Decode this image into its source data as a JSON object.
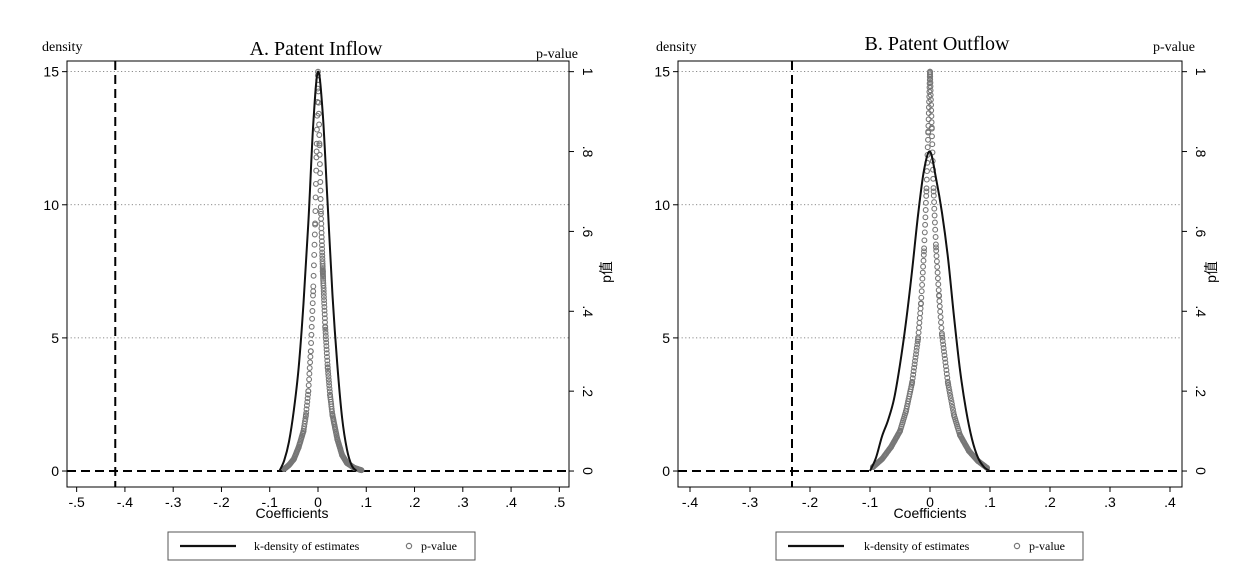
{
  "chart_data": [
    {
      "type": "line",
      "title": "A. Patent Inflow",
      "xlabel": "Coefficients",
      "ylabel_left": "density",
      "ylabel_right_top": "p-value",
      "ylabel_right_side": "p值",
      "xlim": [
        -0.52,
        0.52
      ],
      "ylim_left": [
        -0.6,
        15.4
      ],
      "ylim_right": [
        -0.04,
        1.0267
      ],
      "x_ticks": [
        "-.5",
        "-.4",
        "-.3",
        "-.2",
        "-.1",
        "0",
        ".1",
        ".2",
        ".3",
        ".4",
        ".5"
      ],
      "x_tick_values": [
        -0.5,
        -0.4,
        -0.3,
        -0.2,
        -0.1,
        0,
        0.1,
        0.2,
        0.3,
        0.4,
        0.5
      ],
      "y_ticks_left": [
        "0",
        "5",
        "10",
        "15"
      ],
      "y_tick_values_left": [
        0,
        5,
        10,
        15
      ],
      "y_ticks_right": [
        "0",
        ".2",
        ".4",
        ".6",
        ".8",
        "1"
      ],
      "y_tick_values_right": [
        0,
        0.2,
        0.4,
        0.6,
        0.8,
        1
      ],
      "grid": "horizontal dotted",
      "reference_line_x": -0.42,
      "reference_line_y": 0,
      "series": [
        {
          "name": "k-density of estimates",
          "color": "#111111",
          "x": [
            -0.08,
            -0.07,
            -0.06,
            -0.05,
            -0.04,
            -0.03,
            -0.02,
            -0.01,
            0,
            0.01,
            0.02,
            0.03,
            0.04,
            0.05,
            0.06,
            0.07,
            0.08
          ],
          "y": [
            0,
            0.4,
            1.1,
            2.3,
            3.9,
            6.3,
            9.3,
            13.0,
            15.0,
            13.4,
            10.0,
            6.6,
            4.0,
            2.0,
            0.8,
            0.2,
            0
          ]
        },
        {
          "name": "p-value",
          "color": "#777777",
          "marker": "hollow-circle",
          "x": [
            -0.07,
            -0.06,
            -0.05,
            -0.04,
            -0.03,
            -0.025,
            -0.02,
            -0.015,
            -0.01,
            -0.006,
            -0.003,
            0,
            0.003,
            0.006,
            0.01,
            0.015,
            0.02,
            0.025,
            0.03,
            0.04,
            0.05,
            0.06,
            0.075,
            0.09
          ],
          "y": [
            0.005,
            0.015,
            0.03,
            0.06,
            0.1,
            0.14,
            0.2,
            0.3,
            0.45,
            0.62,
            0.8,
            1.0,
            0.82,
            0.65,
            0.5,
            0.36,
            0.26,
            0.19,
            0.14,
            0.08,
            0.04,
            0.02,
            0.008,
            0.002
          ]
        }
      ],
      "legend": "bottom"
    },
    {
      "type": "line",
      "title": "B. Patent Outflow",
      "xlabel": "Coefficients",
      "ylabel_left": "density",
      "ylabel_right_top": "p-value",
      "ylabel_right_side": "p值",
      "xlim": [
        -0.42,
        0.42
      ],
      "ylim_left": [
        -0.6,
        15.4
      ],
      "ylim_right": [
        -0.04,
        1.0267
      ],
      "x_ticks": [
        "-.4",
        "-.3",
        "-.2",
        "-.1",
        "0",
        ".1",
        ".2",
        ".3",
        ".4"
      ],
      "x_tick_values": [
        -0.4,
        -0.3,
        -0.2,
        -0.1,
        0,
        0.1,
        0.2,
        0.3,
        0.4
      ],
      "y_ticks_left": [
        "0",
        "5",
        "10",
        "15"
      ],
      "y_tick_values_left": [
        0,
        5,
        10,
        15
      ],
      "y_ticks_right": [
        "0",
        ".2",
        ".4",
        ".6",
        ".8",
        "1"
      ],
      "y_tick_values_right": [
        0,
        0.2,
        0.4,
        0.6,
        0.8,
        1
      ],
      "grid": "horizontal dotted",
      "reference_line_x": -0.23,
      "reference_line_y": 0,
      "series": [
        {
          "name": "k-density of estimates",
          "color": "#111111",
          "x": [
            -0.1,
            -0.09,
            -0.08,
            -0.07,
            -0.06,
            -0.05,
            -0.04,
            -0.03,
            -0.02,
            -0.01,
            0,
            0.01,
            0.02,
            0.03,
            0.04,
            0.05,
            0.06,
            0.07,
            0.08,
            0.09,
            0.1
          ],
          "y": [
            0,
            0.5,
            1.3,
            1.9,
            2.7,
            4.0,
            5.6,
            7.5,
            9.6,
            11.3,
            12.0,
            11.0,
            9.7,
            8.0,
            5.8,
            3.8,
            2.3,
            1.2,
            0.5,
            0.15,
            0
          ]
        },
        {
          "name": "p-value",
          "color": "#777777",
          "marker": "hollow-circle",
          "x": [
            -0.095,
            -0.08,
            -0.065,
            -0.05,
            -0.04,
            -0.03,
            -0.02,
            -0.015,
            -0.01,
            -0.006,
            -0.003,
            0,
            0.003,
            0.006,
            0.01,
            0.015,
            0.02,
            0.03,
            0.04,
            0.05,
            0.065,
            0.08,
            0.095
          ],
          "y": [
            0.01,
            0.03,
            0.06,
            0.1,
            0.15,
            0.22,
            0.33,
            0.42,
            0.55,
            0.7,
            0.85,
            1.0,
            0.86,
            0.7,
            0.56,
            0.44,
            0.34,
            0.22,
            0.14,
            0.09,
            0.05,
            0.025,
            0.008
          ]
        }
      ],
      "legend": "bottom"
    }
  ]
}
